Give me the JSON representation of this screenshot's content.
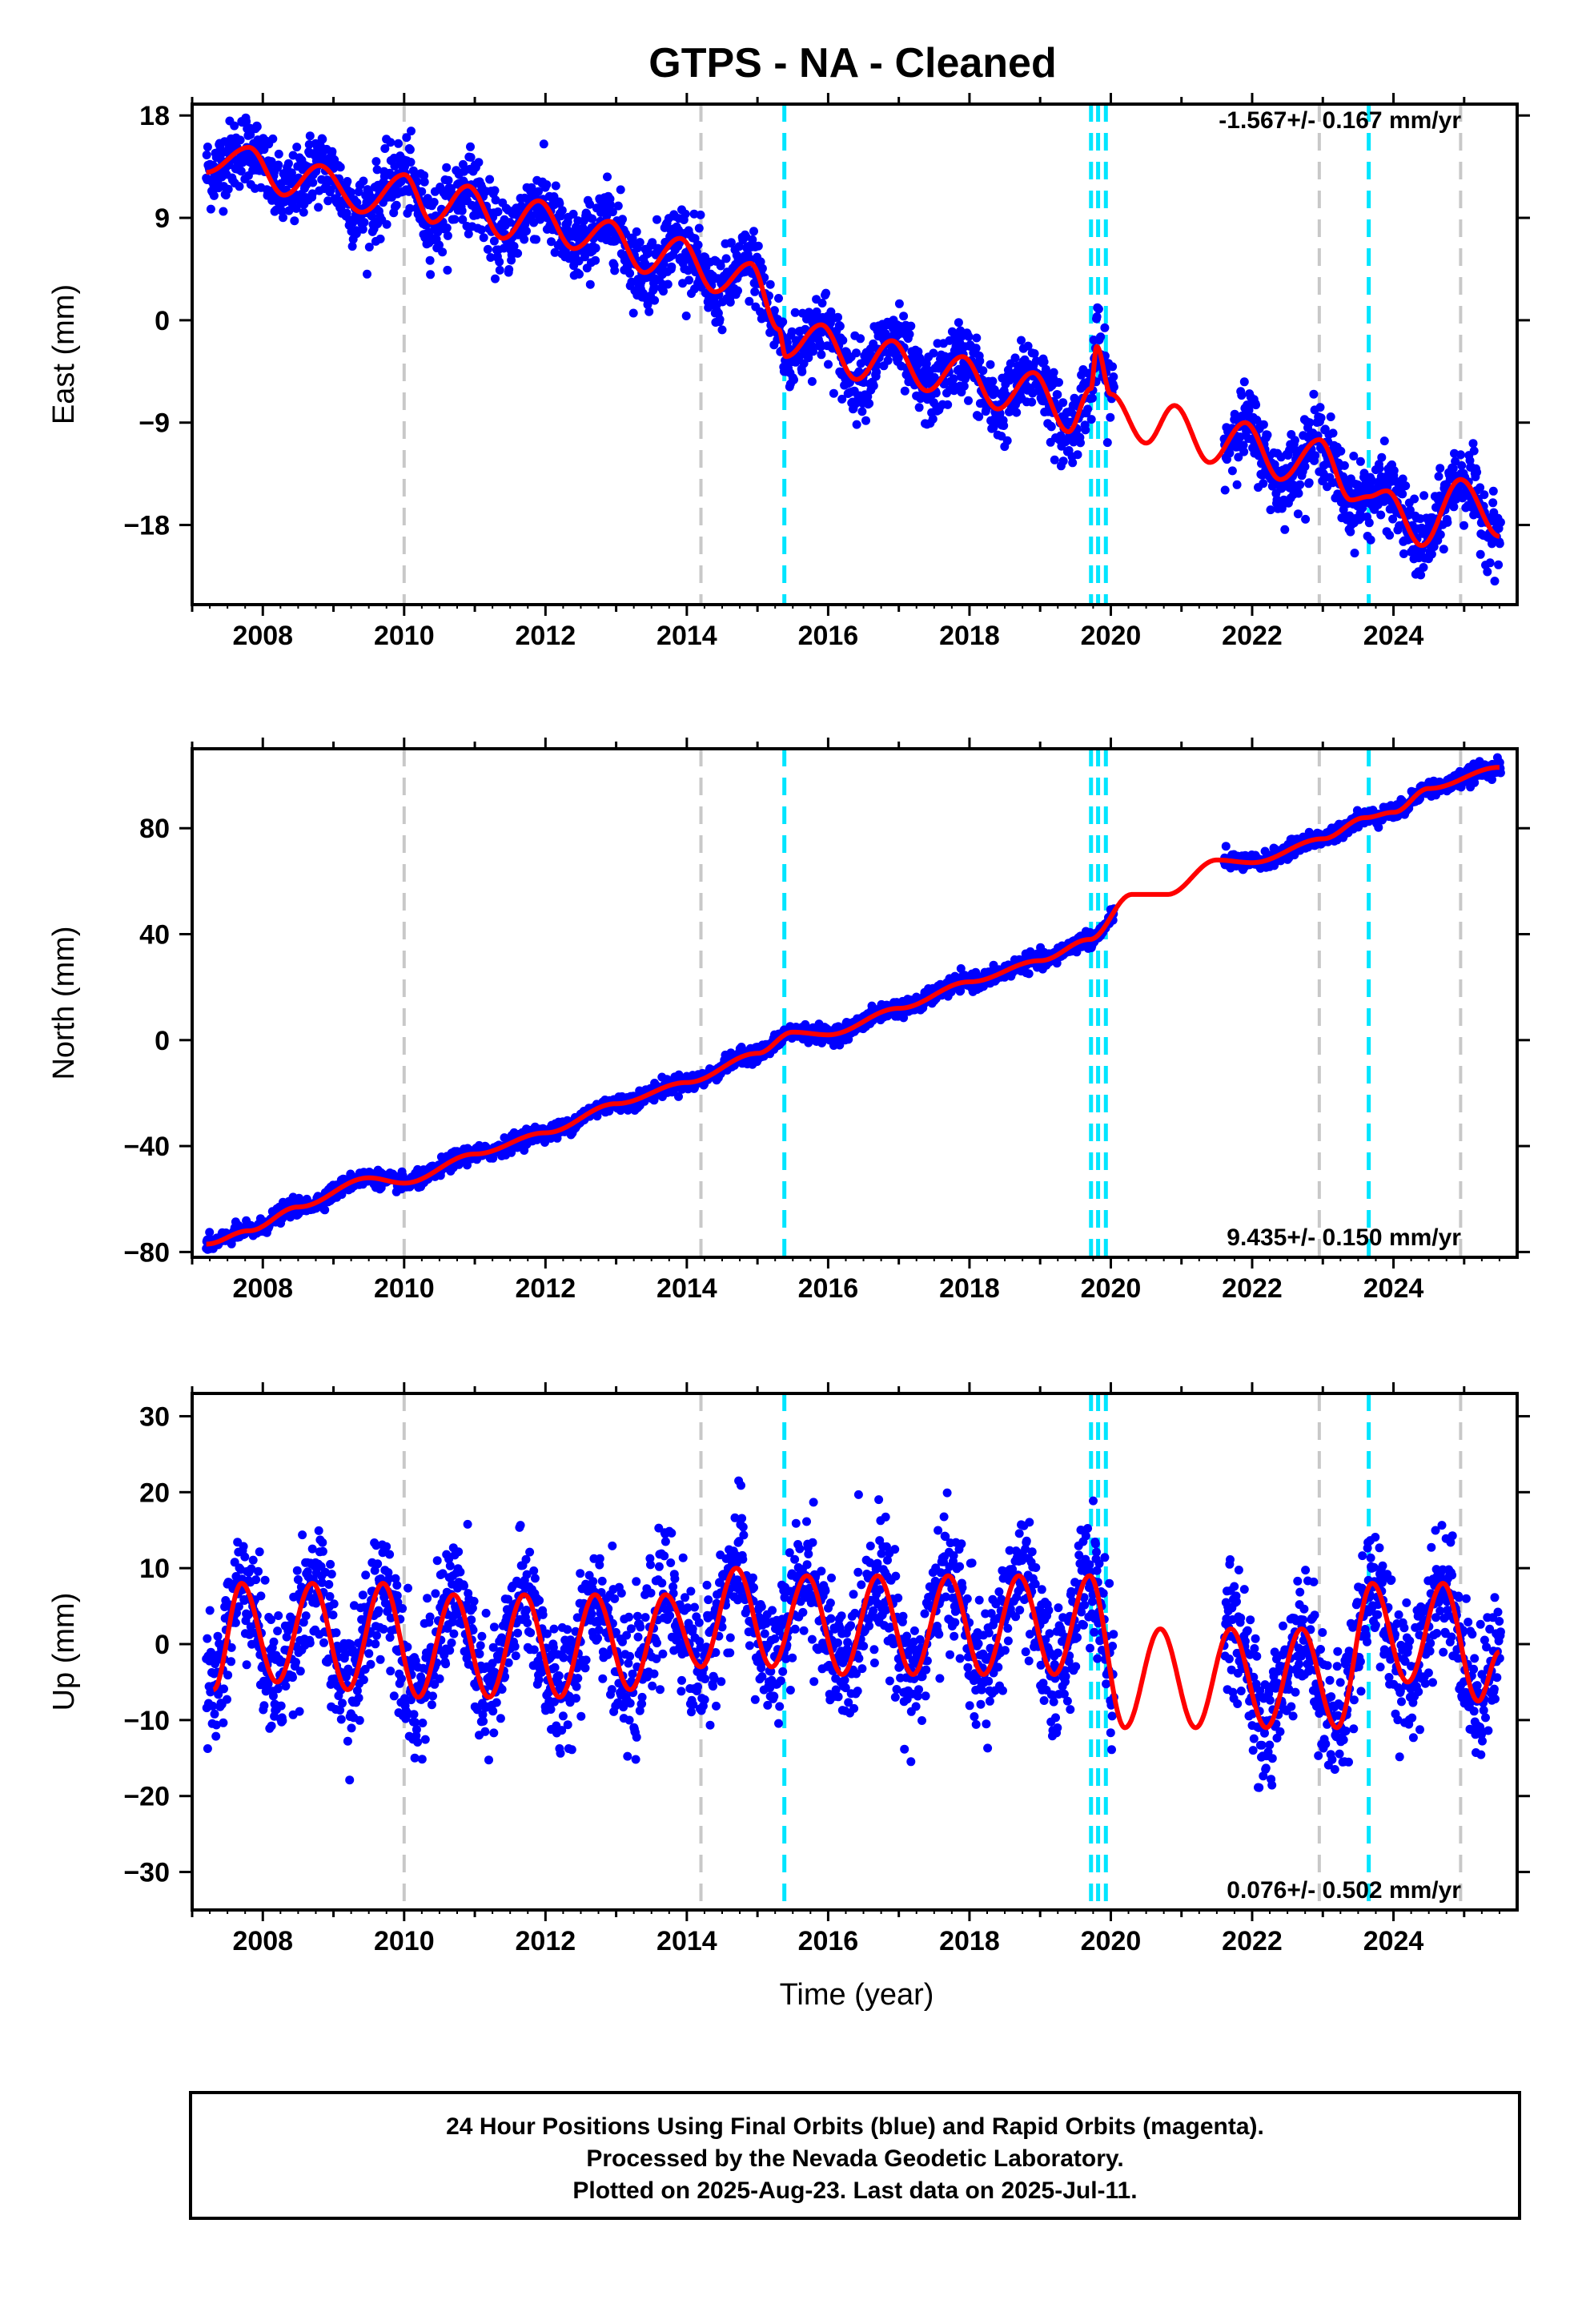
{
  "title": "GTPS  - NA - Cleaned",
  "xlabel": "Time (year)",
  "xticks": [
    "2008",
    "2010",
    "2012",
    "2014",
    "2016",
    "2018",
    "2020",
    "2022",
    "2024"
  ],
  "caption": {
    "line1": "24 Hour Positions Using Final Orbits (blue) and Rapid Orbits (magenta).",
    "line2": "Processed by the Nevada Geodetic Laboratory.",
    "line3": "Plotted on 2025-Aug-23. Last data on 2025-Jul-11."
  },
  "colors": {
    "data": "#0000ff",
    "fit": "#ff0000",
    "gray_line": "#c8c8c8",
    "cyan_line": "#00e5ff",
    "axes": "#000000"
  },
  "gray_lines": [
    2010.0,
    2014.2,
    2022.95,
    2024.95
  ],
  "cyan_lines": [
    2015.38,
    2019.72,
    2019.82,
    2019.93,
    2023.65
  ],
  "chart_data": [
    {
      "type": "scatter",
      "panel": "east",
      "ylabel": "East (mm)",
      "yticks": [
        "18",
        "9",
        "0",
        "−9",
        "−18"
      ],
      "ytick_values": [
        18,
        9,
        0,
        -9,
        -18
      ],
      "ylim": [
        -25,
        19
      ],
      "xlim": [
        2007.0,
        2025.75
      ],
      "rate_label": "-1.567+/- 0.167 mm/yr",
      "rate_position": "top-right",
      "series": [
        {
          "values": [
            [
              2007.2,
              13
            ],
            [
              2007.8,
              15.2
            ],
            [
              2008.3,
              11
            ],
            [
              2008.8,
              13.6
            ],
            [
              2009.4,
              9.5
            ],
            [
              2010.0,
              12.8
            ],
            [
              2010.4,
              8.6
            ],
            [
              2010.9,
              11.8
            ],
            [
              2011.4,
              7.2
            ],
            [
              2011.9,
              10.5
            ],
            [
              2012.4,
              6.3
            ],
            [
              2012.9,
              8.7
            ],
            [
              2013.4,
              4.2
            ],
            [
              2013.9,
              7.2
            ],
            [
              2014.4,
              2.5
            ],
            [
              2014.9,
              5.0
            ],
            [
              2015.3,
              -0.8
            ],
            [
              2015.4,
              -3.2
            ],
            [
              2015.9,
              -0.4
            ],
            [
              2016.4,
              -5.2
            ],
            [
              2016.9,
              -1.8
            ],
            [
              2017.4,
              -6.2
            ],
            [
              2017.9,
              -3.2
            ],
            [
              2018.4,
              -7.8
            ],
            [
              2018.9,
              -4.6
            ],
            [
              2019.4,
              -9.8
            ],
            [
              2019.72,
              -6.0
            ],
            [
              2019.8,
              -2.3
            ],
            [
              2020.0,
              -6.5
            ],
            [
              2020.5,
              -10.8
            ],
            [
              2020.9,
              -7.5
            ],
            [
              2021.4,
              -12.5
            ],
            [
              2021.9,
              -9.0
            ],
            [
              2022.4,
              -14.0
            ],
            [
              2022.95,
              -10.5
            ],
            [
              2023.4,
              -15.8
            ],
            [
              2023.65,
              -15.5
            ],
            [
              2023.9,
              -15.0
            ],
            [
              2024.4,
              -19.8
            ],
            [
              2024.95,
              -14.0
            ],
            [
              2025.5,
              -19.0
            ]
          ]
        }
      ]
    },
    {
      "type": "scatter",
      "panel": "north",
      "ylabel": "North (mm)",
      "yticks": [
        "80",
        "40",
        "0",
        "−40",
        "−80"
      ],
      "ytick_values": [
        80,
        40,
        0,
        -40,
        -80
      ],
      "ylim": [
        -82,
        110
      ],
      "xlim": [
        2007.0,
        2025.75
      ],
      "rate_label": "9.435+/- 0.150 mm/yr",
      "rate_position": "bottom-right",
      "series": [
        {
          "values": [
            [
              2007.2,
              -77
            ],
            [
              2007.8,
              -72
            ],
            [
              2008.5,
              -63
            ],
            [
              2009.5,
              -52
            ],
            [
              2010.0,
              -54
            ],
            [
              2011.0,
              -43
            ],
            [
              2012.0,
              -35
            ],
            [
              2013.0,
              -24
            ],
            [
              2014.0,
              -16
            ],
            [
              2015.0,
              -5
            ],
            [
              2015.5,
              3
            ],
            [
              2016.0,
              2
            ],
            [
              2017.0,
              12
            ],
            [
              2018.0,
              22
            ],
            [
              2019.0,
              30
            ],
            [
              2019.7,
              38
            ],
            [
              2020.3,
              55
            ],
            [
              2020.8,
              55
            ],
            [
              2021.5,
              68
            ],
            [
              2022.0,
              67
            ],
            [
              2023.0,
              76
            ],
            [
              2023.6,
              84
            ],
            [
              2024.0,
              86
            ],
            [
              2024.5,
              95
            ],
            [
              2025.5,
              103
            ]
          ]
        }
      ]
    },
    {
      "type": "scatter",
      "panel": "up",
      "ylabel": "Up (mm)",
      "yticks": [
        "30",
        "20",
        "10",
        "0",
        "−10",
        "−20",
        "−30"
      ],
      "ytick_values": [
        30,
        20,
        10,
        0,
        -10,
        -20,
        -30
      ],
      "ylim": [
        -35,
        33
      ],
      "xlim": [
        2007.0,
        2025.75
      ],
      "rate_label": "0.076+/- 0.502 mm/yr",
      "rate_position": "bottom-right",
      "series": [
        {
          "values": [
            [
              2007.3,
              -6
            ],
            [
              2007.7,
              8
            ],
            [
              2008.2,
              -5
            ],
            [
              2008.7,
              8
            ],
            [
              2009.2,
              -6
            ],
            [
              2009.7,
              8
            ],
            [
              2010.2,
              -7
            ],
            [
              2010.7,
              6.5
            ],
            [
              2011.2,
              -7
            ],
            [
              2011.7,
              6.5
            ],
            [
              2012.2,
              -7
            ],
            [
              2012.7,
              6.5
            ],
            [
              2013.2,
              -6
            ],
            [
              2013.7,
              6.5
            ],
            [
              2014.2,
              -3
            ],
            [
              2014.7,
              10
            ],
            [
              2015.2,
              -3
            ],
            [
              2015.7,
              9
            ],
            [
              2016.2,
              -4
            ],
            [
              2016.7,
              9
            ],
            [
              2017.2,
              -4
            ],
            [
              2017.7,
              9
            ],
            [
              2018.2,
              -4
            ],
            [
              2018.7,
              9
            ],
            [
              2019.2,
              -4
            ],
            [
              2019.7,
              9
            ],
            [
              2020.2,
              -11
            ],
            [
              2020.7,
              2
            ],
            [
              2021.2,
              -11
            ],
            [
              2021.7,
              2
            ],
            [
              2022.2,
              -11
            ],
            [
              2022.7,
              2
            ],
            [
              2023.2,
              -11
            ],
            [
              2023.7,
              8
            ],
            [
              2024.2,
              -5
            ],
            [
              2024.7,
              8
            ],
            [
              2025.2,
              -7.5
            ],
            [
              2025.5,
              -1
            ]
          ]
        }
      ]
    }
  ]
}
